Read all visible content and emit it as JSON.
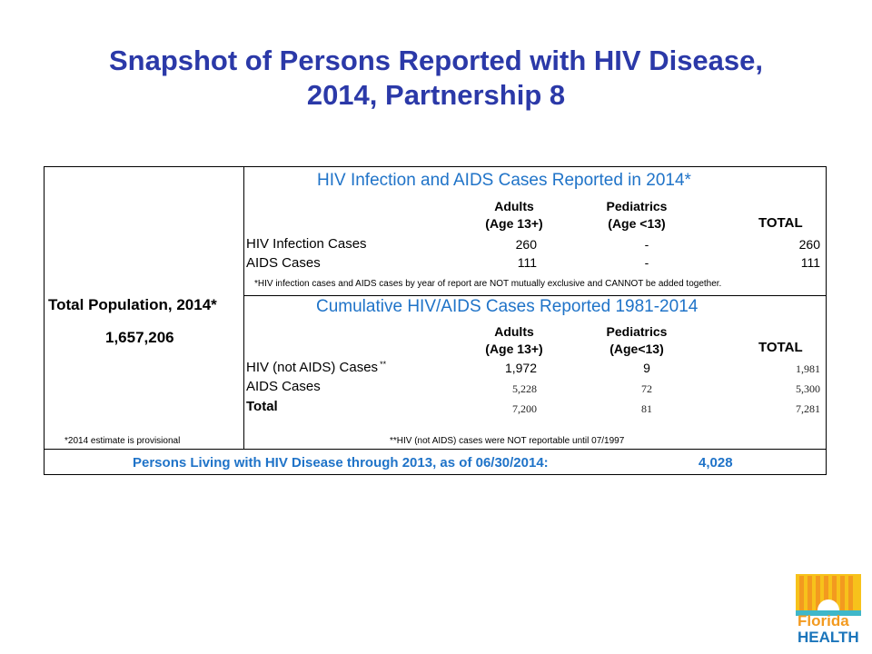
{
  "title": {
    "line1": "Snapshot of Persons Reported with HIV Disease,",
    "line2": "2014, Partnership 8"
  },
  "population": {
    "label": "Total Population, 2014*",
    "value": "1,657,206",
    "footnote": "*2014 estimate is provisional"
  },
  "section2014": {
    "heading": "HIV Infection and AIDS Cases Reported in 2014*",
    "col_adults_1": "Adults",
    "col_adults_2": "(Age 13+)",
    "col_peds_1": "Pediatrics",
    "col_peds_2": "(Age <13)",
    "col_total": "TOTAL",
    "rows": [
      {
        "label": "HIV Infection Cases",
        "adults": "260",
        "peds": "-",
        "total": "260"
      },
      {
        "label": "AIDS Cases",
        "adults": "111",
        "peds": "-",
        "total": "111"
      }
    ],
    "footnote": "*HIV infection cases and AIDS cases by year of report are NOT mutually exclusive and CANNOT be added together."
  },
  "cumulative": {
    "heading": "Cumulative HIV/AIDS Cases Reported 1981-2014",
    "col_adults_1": "Adults",
    "col_adults_2": "(Age 13+)",
    "col_peds_1": "Pediatrics",
    "col_peds_2": "(Age<13)",
    "col_total": "TOTAL",
    "rows": [
      {
        "label": "HIV (not AIDS) Cases",
        "marker": "**",
        "adults": "1,972",
        "peds": "9",
        "total": "1,981"
      },
      {
        "label": "AIDS Cases",
        "adults": "5,228",
        "peds": "72",
        "total": "5,300"
      },
      {
        "label": "Total",
        "adults": "7,200",
        "peds": "81",
        "total": "7,281"
      }
    ],
    "footnote": "**HIV (not AIDS) cases were NOT reportable until 07/1997"
  },
  "living": {
    "label": "Persons Living with HIV Disease through 2013, as of 06/30/2014:",
    "value": "4,028"
  },
  "logo": {
    "word1": "Florida",
    "word2": "HEALTH",
    "colors": {
      "yellow": "#f7c21b",
      "orange": "#f39a1f",
      "teal": "#3fb7c9",
      "blue": "#1b75bb"
    }
  }
}
